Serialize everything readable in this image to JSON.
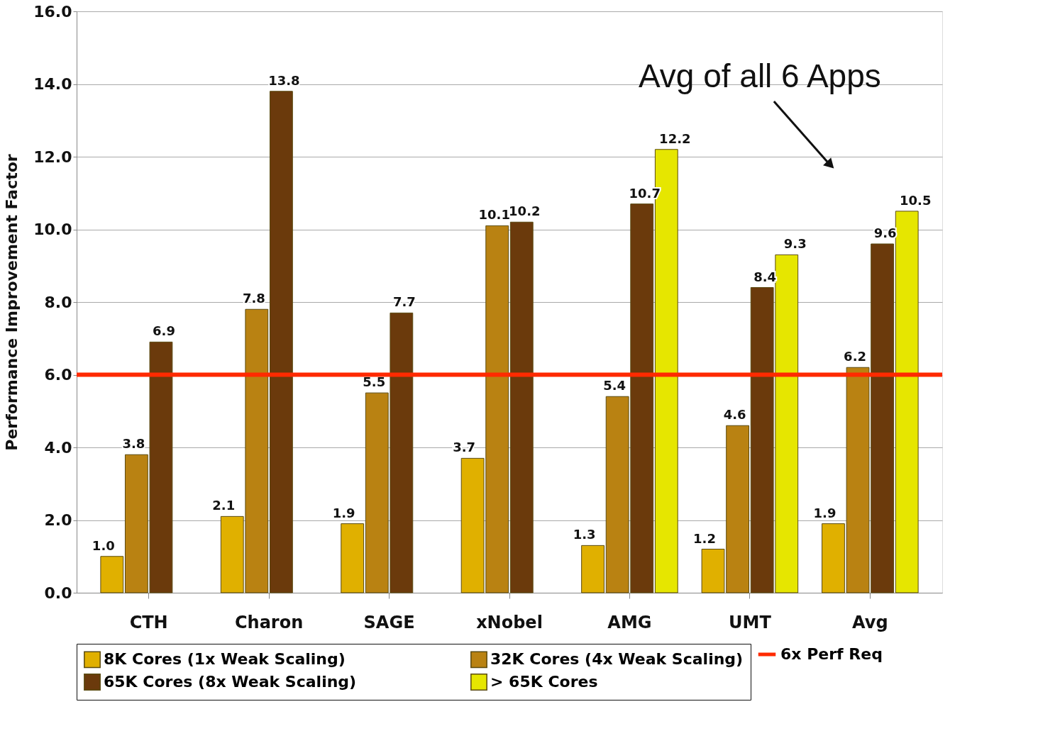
{
  "chart_data": {
    "type": "bar",
    "ylabel": "Performance Improvement Factor",
    "categories": [
      "CTH",
      "Charon",
      "SAGE",
      "xNobel",
      "AMG",
      "UMT",
      "Avg"
    ],
    "series": [
      {
        "name": "8K Cores (1x Weak Scaling)",
        "color": "#e0b000",
        "values": [
          1.0,
          2.1,
          1.9,
          3.7,
          1.3,
          1.2,
          1.9
        ],
        "value_labels": [
          "1.0",
          "2.1",
          "1.9",
          "3.7",
          "1.3",
          "1.2",
          "1.9"
        ]
      },
      {
        "name": "32K Cores (4x Weak Scaling)",
        "color": "#b98212",
        "values": [
          3.8,
          7.8,
          5.5,
          10.1,
          5.4,
          4.6,
          6.2
        ],
        "value_labels": [
          "3.8",
          "7.8",
          "5.5",
          "10.1",
          "5.4",
          "4.6",
          "6.2"
        ]
      },
      {
        "name": "65K Cores  (8x Weak Scaling)",
        "color": "#6b3a0c",
        "values": [
          6.9,
          13.8,
          7.7,
          10.2,
          10.7,
          8.4,
          9.6
        ],
        "value_labels": [
          "6.9",
          "13.8",
          "7.7",
          "10.2",
          "10.7",
          "8.4",
          "9.6"
        ]
      },
      {
        "name": "> 65K Cores",
        "color": "#e6e600",
        "values": [
          null,
          null,
          null,
          null,
          12.2,
          9.3,
          10.5
        ],
        "value_labels": [
          null,
          null,
          null,
          null,
          "12.2",
          "9.3",
          "10.5"
        ]
      }
    ],
    "ylim": [
      0,
      16
    ],
    "yticks": [
      {
        "value": 0,
        "label": "0.0"
      },
      {
        "value": 2,
        "label": "2.0"
      },
      {
        "value": 4,
        "label": "4.0"
      },
      {
        "value": 6,
        "label": "6.0"
      },
      {
        "value": 8,
        "label": "8.0"
      },
      {
        "value": 10,
        "label": "10.0"
      },
      {
        "value": 12,
        "label": "12.0"
      },
      {
        "value": 14,
        "label": "14.0"
      },
      {
        "value": 16,
        "label": "16.0"
      }
    ],
    "ref_lines": [
      {
        "axis": "y",
        "value": 6,
        "label": "6x Perf Req",
        "color": "#ff2a00"
      }
    ],
    "annotations": [
      "Avg of all 6 Apps"
    ],
    "grid": "y",
    "legend": "bottom"
  }
}
